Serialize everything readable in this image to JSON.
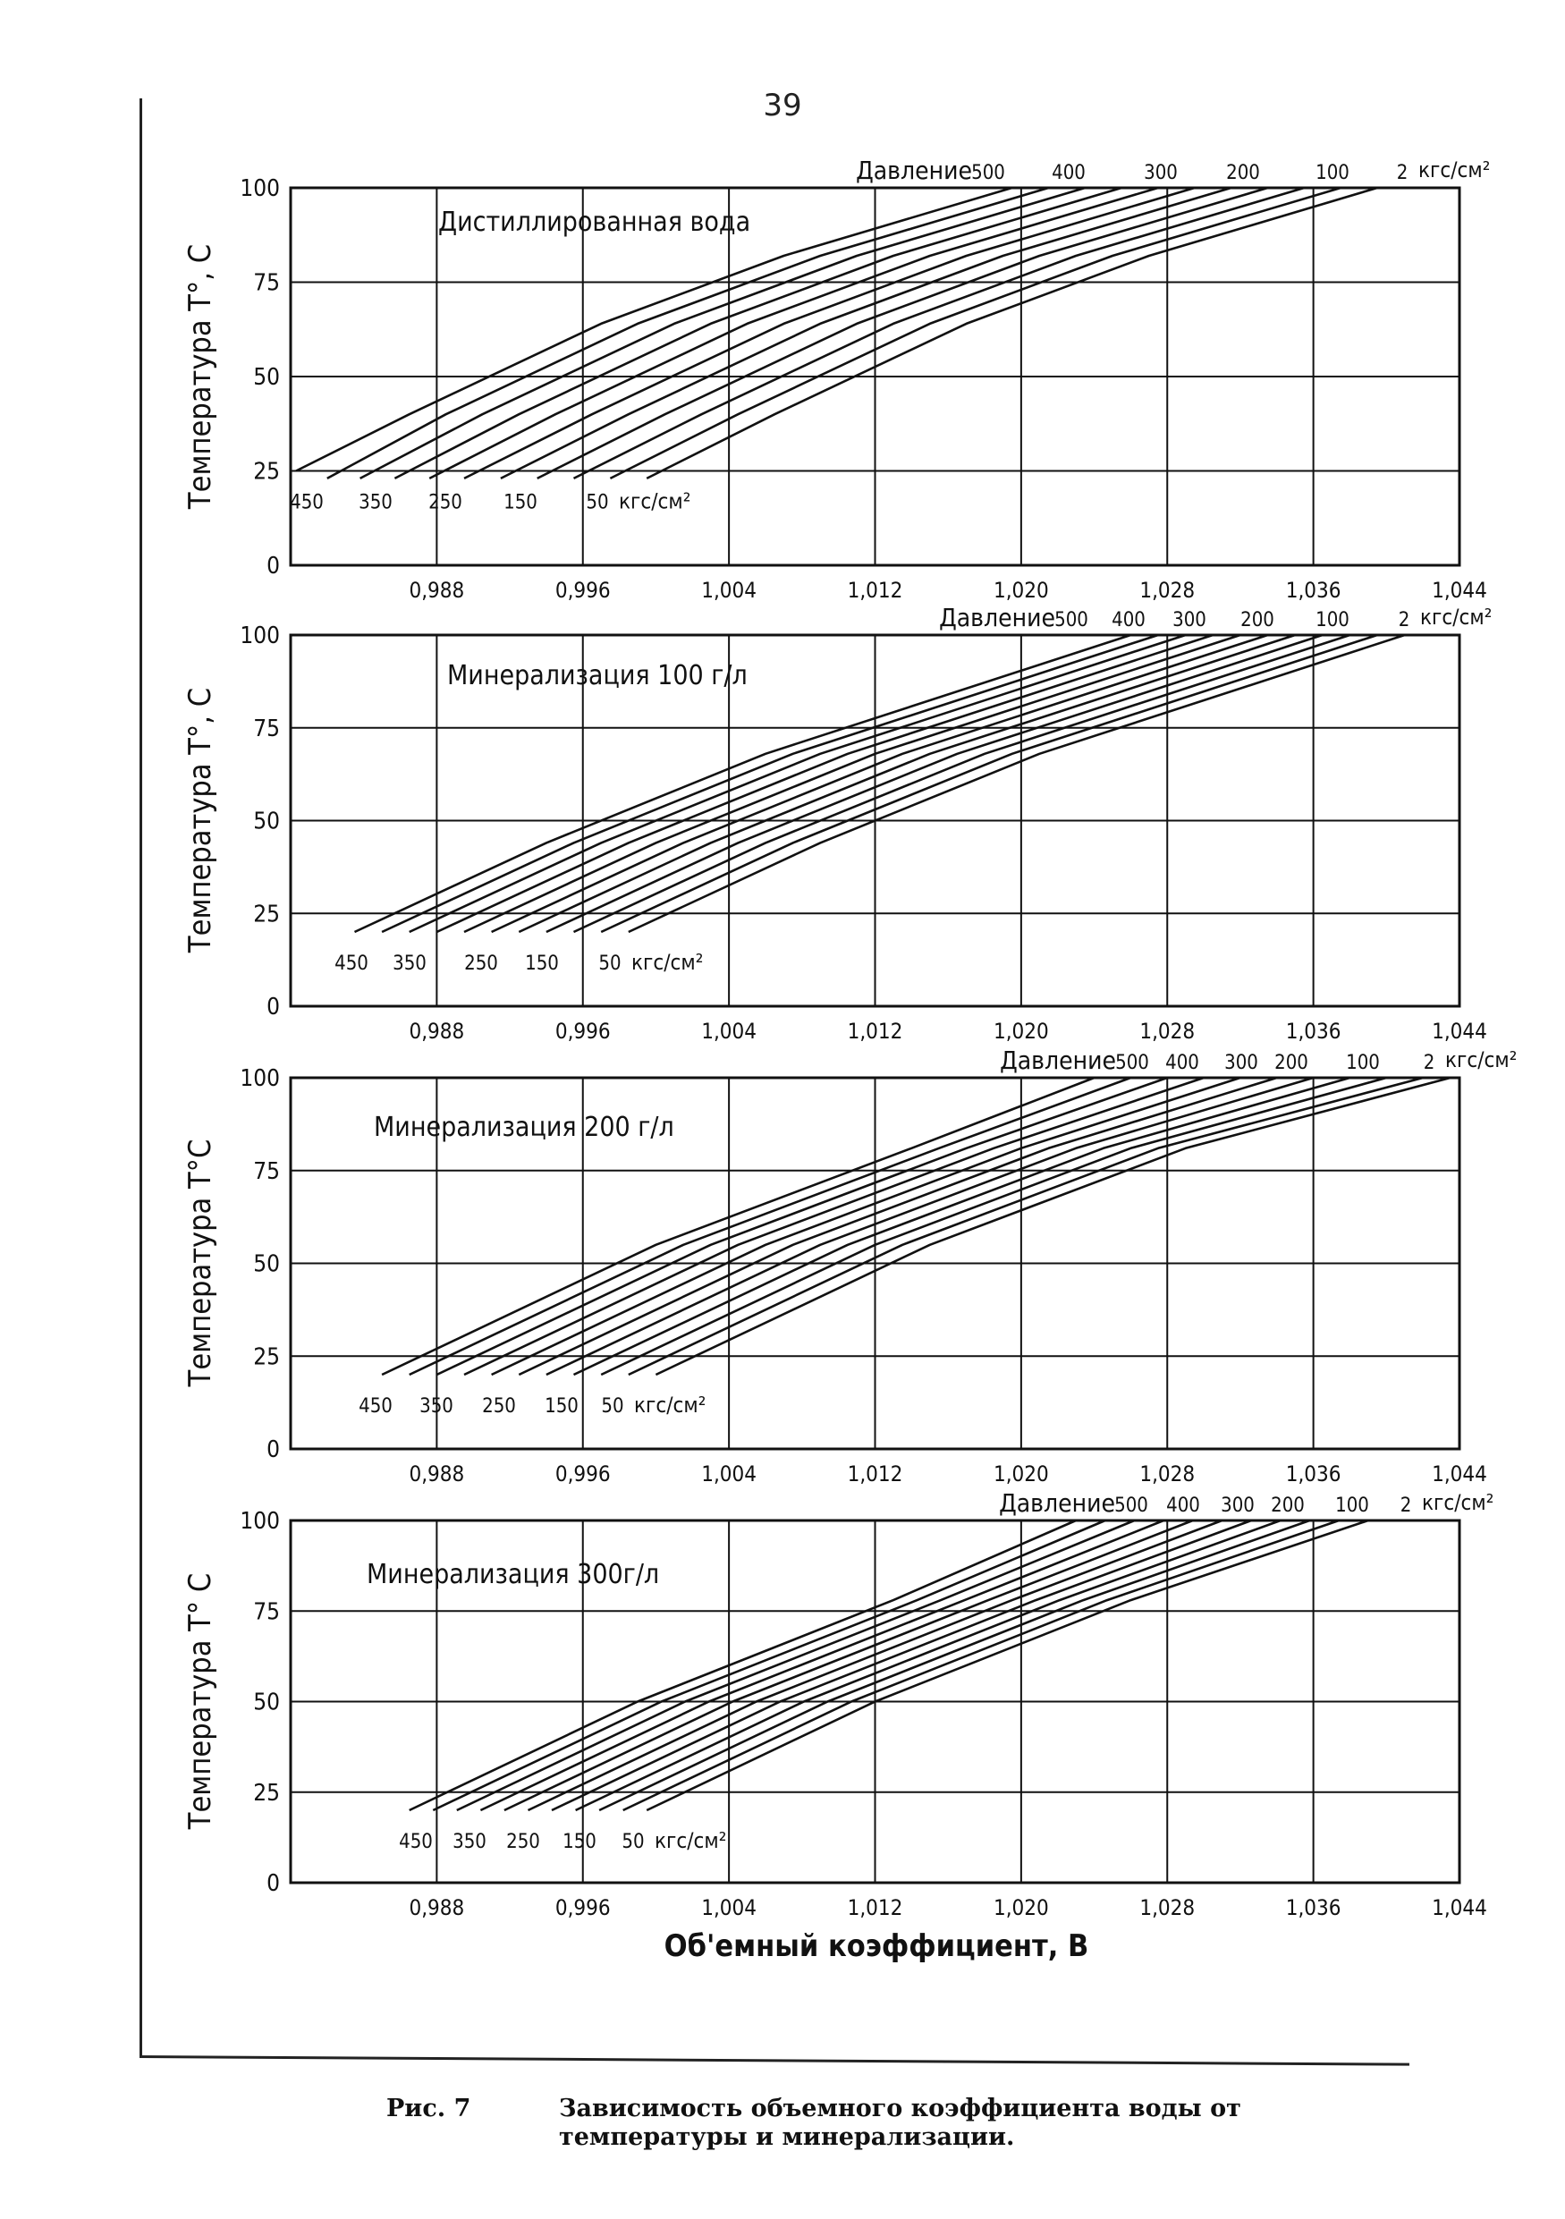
{
  "page_number": "39",
  "caption": {
    "label": "Рис. 7",
    "line1": "Зависимость объемного коэффициента воды от",
    "line2": "температуры и минерализации."
  },
  "colors": {
    "ink": "#111111",
    "paper": "#ffffff"
  },
  "chart_data": [
    {
      "type": "line",
      "title": "Дистиллированная вода",
      "xlabel": "",
      "ylabel": "Температура Т°, С",
      "pressure_label": "Давление",
      "pressure_unit": "кгс/см²",
      "xlim": [
        0.98,
        1.044
      ],
      "ylim": [
        0,
        100
      ],
      "x_tick_labels": [
        "0,988",
        "0,996",
        "1,004",
        "1,012",
        "1,020",
        "1,028",
        "1,036",
        "1,044"
      ],
      "y_tick_labels": [
        "0",
        "25",
        "50",
        "75",
        "100"
      ],
      "grid": true,
      "top_labels": [
        "500",
        "400",
        "300",
        "200",
        "100",
        "2"
      ],
      "bottom_labels": [
        "450",
        "350",
        "250",
        "150",
        "50"
      ],
      "bottom_unit": "кгс/см²",
      "series": [
        {
          "name": "500",
          "values": [
            [
              0.9803,
              25
            ],
            [
              0.9865,
              40
            ],
            [
              0.997,
              64
            ],
            [
              1.007,
              82
            ],
            [
              1.0195,
              100
            ]
          ]
        },
        {
          "name": "450",
          "values": [
            [
              0.982,
              23
            ],
            [
              0.9885,
              40
            ],
            [
              0.999,
              64
            ],
            [
              1.009,
              82
            ],
            [
              1.0215,
              100
            ]
          ]
        },
        {
          "name": "400",
          "values": [
            [
              0.9838,
              23
            ],
            [
              0.9905,
              40
            ],
            [
              1.001,
              64
            ],
            [
              1.011,
              82
            ],
            [
              1.0235,
              100
            ]
          ]
        },
        {
          "name": "350",
          "values": [
            [
              0.9857,
              23
            ],
            [
              0.9925,
              40
            ],
            [
              1.003,
              64
            ],
            [
              1.013,
              82
            ],
            [
              1.0255,
              100
            ]
          ]
        },
        {
          "name": "300",
          "values": [
            [
              0.9876,
              23
            ],
            [
              0.9945,
              40
            ],
            [
              1.005,
              64
            ],
            [
              1.015,
              82
            ],
            [
              1.0275,
              100
            ]
          ]
        },
        {
          "name": "250",
          "values": [
            [
              0.9895,
              23
            ],
            [
              0.9965,
              40
            ],
            [
              1.007,
              64
            ],
            [
              1.017,
              82
            ],
            [
              1.0295,
              100
            ]
          ]
        },
        {
          "name": "200",
          "values": [
            [
              0.9915,
              23
            ],
            [
              0.9985,
              40
            ],
            [
              1.009,
              64
            ],
            [
              1.019,
              82
            ],
            [
              1.0315,
              100
            ]
          ]
        },
        {
          "name": "150",
          "values": [
            [
              0.9935,
              23
            ],
            [
              1.0005,
              40
            ],
            [
              1.011,
              64
            ],
            [
              1.021,
              82
            ],
            [
              1.0335,
              100
            ]
          ]
        },
        {
          "name": "100",
          "values": [
            [
              0.9955,
              23
            ],
            [
              1.0025,
              40
            ],
            [
              1.013,
              64
            ],
            [
              1.023,
              82
            ],
            [
              1.0355,
              100
            ]
          ]
        },
        {
          "name": "50",
          "values": [
            [
              0.9975,
              23
            ],
            [
              1.0045,
              40
            ],
            [
              1.015,
              64
            ],
            [
              1.025,
              82
            ],
            [
              1.0375,
              100
            ]
          ]
        },
        {
          "name": "2",
          "values": [
            [
              0.9995,
              23
            ],
            [
              1.0065,
              40
            ],
            [
              1.017,
              64
            ],
            [
              1.027,
              82
            ],
            [
              1.0395,
              100
            ]
          ]
        }
      ]
    },
    {
      "type": "line",
      "title": "Минерализация 100 г/л",
      "xlabel": "",
      "ylabel": "Температура Т°, С",
      "pressure_label": "Давление",
      "pressure_unit": "кгс/см²",
      "xlim": [
        0.98,
        1.044
      ],
      "ylim": [
        0,
        100
      ],
      "x_tick_labels": [
        "0,988",
        "0,996",
        "1,004",
        "1,012",
        "1,020",
        "1,028",
        "1,036",
        "1,044"
      ],
      "y_tick_labels": [
        "0",
        "25",
        "50",
        "75",
        "100"
      ],
      "grid": true,
      "top_labels": [
        "500",
        "400",
        "300",
        "200",
        "100",
        "2"
      ],
      "bottom_labels": [
        "450",
        "350",
        "250",
        "150",
        "50"
      ],
      "bottom_unit": "кгс/см²",
      "series": [
        {
          "name": "500",
          "values": [
            [
              0.9835,
              20
            ],
            [
              0.994,
              44
            ],
            [
              1.006,
              68
            ],
            [
              1.026,
              100
            ]
          ]
        },
        {
          "name": "450",
          "values": [
            [
              0.985,
              20
            ],
            [
              0.9955,
              44
            ],
            [
              1.0075,
              68
            ],
            [
              1.0275,
              100
            ]
          ]
        },
        {
          "name": "400",
          "values": [
            [
              0.9865,
              20
            ],
            [
              0.997,
              44
            ],
            [
              1.009,
              68
            ],
            [
              1.029,
              100
            ]
          ]
        },
        {
          "name": "350",
          "values": [
            [
              0.988,
              20
            ],
            [
              0.9985,
              44
            ],
            [
              1.0105,
              68
            ],
            [
              1.0305,
              100
            ]
          ]
        },
        {
          "name": "300",
          "values": [
            [
              0.9895,
              20
            ],
            [
              1.0,
              44
            ],
            [
              1.012,
              68
            ],
            [
              1.032,
              100
            ]
          ]
        },
        {
          "name": "250",
          "values": [
            [
              0.991,
              20
            ],
            [
              1.0015,
              44
            ],
            [
              1.0135,
              68
            ],
            [
              1.0335,
              100
            ]
          ]
        },
        {
          "name": "200",
          "values": [
            [
              0.9925,
              20
            ],
            [
              1.003,
              44
            ],
            [
              1.015,
              68
            ],
            [
              1.035,
              100
            ]
          ]
        },
        {
          "name": "150",
          "values": [
            [
              0.994,
              20
            ],
            [
              1.0045,
              44
            ],
            [
              1.0165,
              68
            ],
            [
              1.0365,
              100
            ]
          ]
        },
        {
          "name": "100",
          "values": [
            [
              0.9955,
              20
            ],
            [
              1.006,
              44
            ],
            [
              1.018,
              68
            ],
            [
              1.038,
              100
            ]
          ]
        },
        {
          "name": "50",
          "values": [
            [
              0.997,
              20
            ],
            [
              1.0075,
              44
            ],
            [
              1.0195,
              68
            ],
            [
              1.0395,
              100
            ]
          ]
        },
        {
          "name": "2",
          "values": [
            [
              0.9985,
              20
            ],
            [
              1.009,
              44
            ],
            [
              1.021,
              68
            ],
            [
              1.041,
              100
            ]
          ]
        }
      ]
    },
    {
      "type": "line",
      "title": "Минерализация 200 г/л",
      "xlabel": "",
      "ylabel": "Температура Т°С",
      "pressure_label": "Давление",
      "pressure_unit": "кгс/см²",
      "xlim": [
        0.98,
        1.044
      ],
      "ylim": [
        0,
        100
      ],
      "x_tick_labels": [
        "0,988",
        "0,996",
        "1,004",
        "1,012",
        "1,020",
        "1,028",
        "1,036",
        "1,044"
      ],
      "y_tick_labels": [
        "0",
        "25",
        "50",
        "75",
        "100"
      ],
      "grid": true,
      "top_labels": [
        "500",
        "400",
        "300",
        "200",
        "100",
        "2"
      ],
      "bottom_labels": [
        "450",
        "350",
        "250",
        "150",
        "50"
      ],
      "bottom_unit": "кгс/см²",
      "series": [
        {
          "name": "500",
          "values": [
            [
              0.985,
              20
            ],
            [
              1.0,
              55
            ],
            [
              1.014,
              81
            ],
            [
              1.024,
              100
            ]
          ]
        },
        {
          "name": "450",
          "values": [
            [
              0.9865,
              20
            ],
            [
              1.0015,
              55
            ],
            [
              1.0155,
              81
            ],
            [
              1.026,
              100
            ]
          ]
        },
        {
          "name": "400",
          "values": [
            [
              0.988,
              20
            ],
            [
              1.003,
              55
            ],
            [
              1.017,
              81
            ],
            [
              1.028,
              100
            ]
          ]
        },
        {
          "name": "350",
          "values": [
            [
              0.9895,
              20
            ],
            [
              1.0045,
              55
            ],
            [
              1.0185,
              81
            ],
            [
              1.03,
              100
            ]
          ]
        },
        {
          "name": "300",
          "values": [
            [
              0.991,
              20
            ],
            [
              1.006,
              55
            ],
            [
              1.02,
              81
            ],
            [
              1.032,
              100
            ]
          ]
        },
        {
          "name": "250",
          "values": [
            [
              0.9925,
              20
            ],
            [
              1.0075,
              55
            ],
            [
              1.0215,
              81
            ],
            [
              1.034,
              100
            ]
          ]
        },
        {
          "name": "200",
          "values": [
            [
              0.994,
              20
            ],
            [
              1.009,
              55
            ],
            [
              1.023,
              81
            ],
            [
              1.036,
              100
            ]
          ]
        },
        {
          "name": "150",
          "values": [
            [
              0.9955,
              20
            ],
            [
              1.0105,
              55
            ],
            [
              1.0245,
              81
            ],
            [
              1.038,
              100
            ]
          ]
        },
        {
          "name": "100",
          "values": [
            [
              0.997,
              20
            ],
            [
              1.012,
              55
            ],
            [
              1.026,
              81
            ],
            [
              1.04,
              100
            ]
          ]
        },
        {
          "name": "50",
          "values": [
            [
              0.9985,
              20
            ],
            [
              1.0135,
              55
            ],
            [
              1.0275,
              81
            ],
            [
              1.042,
              100
            ]
          ]
        },
        {
          "name": "2",
          "values": [
            [
              1.0,
              20
            ],
            [
              1.015,
              55
            ],
            [
              1.029,
              81
            ],
            [
              1.0435,
              100
            ]
          ]
        }
      ]
    },
    {
      "type": "line",
      "title": "Минерализация 300г/л",
      "xlabel": "Об'емный коэффициент, В",
      "ylabel": "Температура Т° С",
      "pressure_label": "Давление",
      "pressure_unit": "кгс/см²",
      "xlim": [
        0.98,
        1.044
      ],
      "ylim": [
        0,
        100
      ],
      "x_tick_labels": [
        "0,988",
        "0,996",
        "1,004",
        "1,012",
        "1,020",
        "1,028",
        "1,036",
        "1,044"
      ],
      "y_tick_labels": [
        "0",
        "25",
        "50",
        "75",
        "100"
      ],
      "grid": true,
      "top_labels": [
        "500",
        "400",
        "300",
        "200",
        "100",
        "2"
      ],
      "bottom_labels": [
        "450",
        "350",
        "250",
        "150",
        "50"
      ],
      "bottom_unit": "кгс/см²",
      "series": [
        {
          "name": "500",
          "values": [
            [
              0.9865,
              20
            ],
            [
              0.999,
              50
            ],
            [
              1.013,
              78
            ],
            [
              1.023,
              100
            ]
          ]
        },
        {
          "name": "450",
          "values": [
            [
              0.9878,
              20
            ],
            [
              1.0003,
              50
            ],
            [
              1.0143,
              78
            ],
            [
              1.0246,
              100
            ]
          ]
        },
        {
          "name": "400",
          "values": [
            [
              0.9891,
              20
            ],
            [
              1.0016,
              50
            ],
            [
              1.0156,
              78
            ],
            [
              1.0262,
              100
            ]
          ]
        },
        {
          "name": "350",
          "values": [
            [
              0.9904,
              20
            ],
            [
              1.0029,
              50
            ],
            [
              1.0169,
              78
            ],
            [
              1.0278,
              100
            ]
          ]
        },
        {
          "name": "300",
          "values": [
            [
              0.9917,
              20
            ],
            [
              1.0042,
              50
            ],
            [
              1.0182,
              78
            ],
            [
              1.0294,
              100
            ]
          ]
        },
        {
          "name": "250",
          "values": [
            [
              0.993,
              20
            ],
            [
              1.0055,
              50
            ],
            [
              1.0195,
              78
            ],
            [
              1.031,
              100
            ]
          ]
        },
        {
          "name": "200",
          "values": [
            [
              0.9943,
              20
            ],
            [
              1.0068,
              50
            ],
            [
              1.0208,
              78
            ],
            [
              1.0326,
              100
            ]
          ]
        },
        {
          "name": "150",
          "values": [
            [
              0.9956,
              20
            ],
            [
              1.0081,
              50
            ],
            [
              1.0221,
              78
            ],
            [
              1.0342,
              100
            ]
          ]
        },
        {
          "name": "100",
          "values": [
            [
              0.9969,
              20
            ],
            [
              1.0094,
              50
            ],
            [
              1.0234,
              78
            ],
            [
              1.0358,
              100
            ]
          ]
        },
        {
          "name": "50",
          "values": [
            [
              0.9982,
              20
            ],
            [
              1.0107,
              50
            ],
            [
              1.0247,
              78
            ],
            [
              1.0374,
              100
            ]
          ]
        },
        {
          "name": "2",
          "values": [
            [
              0.9995,
              20
            ],
            [
              1.012,
              50
            ],
            [
              1.026,
              78
            ],
            [
              1.039,
              100
            ]
          ]
        }
      ]
    }
  ]
}
